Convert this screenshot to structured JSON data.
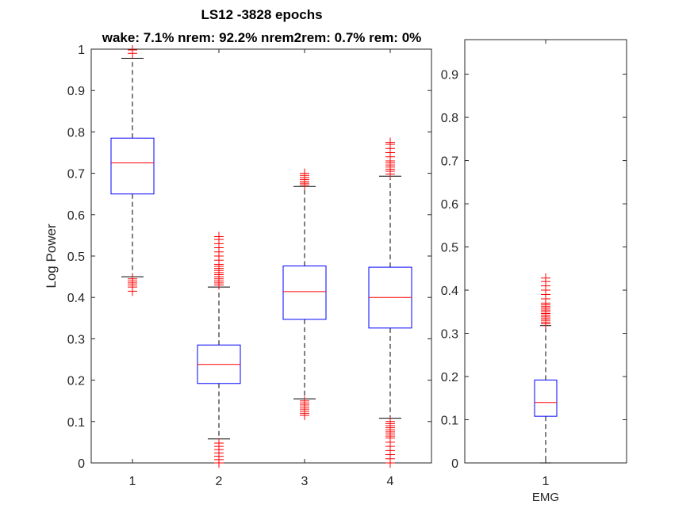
{
  "title_line1": "LS12 -3828 epochs",
  "title_line2": "wake: 7.1% nrem: 92.2% nrem2rem: 0.7% rem: 0%",
  "colors": {
    "box": "#0000ff",
    "median": "#ff0000",
    "whisker": "#000000",
    "outlier": "#ff0000",
    "axes": "#262626"
  },
  "chart_data": [
    {
      "type": "box",
      "ylabel": "Log Power",
      "xlabel": "",
      "ylim": [
        0,
        1
      ],
      "yticks": [
        "0",
        "0.1",
        "0.2",
        "0.3",
        "0.4",
        "0.5",
        "0.6",
        "0.7",
        "0.8",
        "0.9",
        "1"
      ],
      "grid": false,
      "categories": [
        "1",
        "2",
        "3",
        "4"
      ],
      "boxes": [
        {
          "category": "1",
          "whisker_low": 0.45,
          "q1": 0.65,
          "median": 0.725,
          "q3": 0.785,
          "whisker_high": 0.978,
          "outliers": [
            0.415,
            0.425,
            0.43,
            0.435,
            0.44,
            0.445,
            0.99,
            0.998
          ]
        },
        {
          "category": "2",
          "whisker_low": 0.058,
          "q1": 0.192,
          "median": 0.238,
          "q3": 0.285,
          "whisker_high": 0.425,
          "outliers": [
            0.0,
            0.008,
            0.016,
            0.024,
            0.032,
            0.04,
            0.048,
            0.43,
            0.435,
            0.44,
            0.445,
            0.45,
            0.455,
            0.46,
            0.465,
            0.47,
            0.475,
            0.48,
            0.49,
            0.5,
            0.51,
            0.52,
            0.53,
            0.54,
            0.547
          ]
        },
        {
          "category": "3",
          "whisker_low": 0.155,
          "q1": 0.347,
          "median": 0.414,
          "q3": 0.476,
          "whisker_high": 0.668,
          "outliers": [
            0.115,
            0.12,
            0.125,
            0.13,
            0.135,
            0.14,
            0.145,
            0.15,
            0.672,
            0.676,
            0.68,
            0.685,
            0.69,
            0.695,
            0.7
          ]
        },
        {
          "category": "4",
          "whisker_low": 0.108,
          "q1": 0.326,
          "median": 0.4,
          "q3": 0.473,
          "whisker_high": 0.693,
          "outliers": [
            0.0,
            0.01,
            0.02,
            0.03,
            0.04,
            0.05,
            0.06,
            0.065,
            0.07,
            0.075,
            0.08,
            0.085,
            0.09,
            0.095,
            0.1,
            0.698,
            0.705,
            0.71,
            0.715,
            0.72,
            0.725,
            0.73,
            0.74,
            0.75,
            0.76,
            0.77,
            0.775
          ]
        }
      ]
    },
    {
      "type": "box",
      "ylabel": "",
      "xlabel": "EMG",
      "ylim": [
        0,
        0.98
      ],
      "yticks": [
        "0",
        "0.1",
        "0.2",
        "0.3",
        "0.4",
        "0.5",
        "0.6",
        "0.7",
        "0.8",
        "0.9"
      ],
      "grid": false,
      "categories": [
        "1"
      ],
      "boxes": [
        {
          "category": "1",
          "whisker_low": 0.0,
          "q1": 0.108,
          "median": 0.14,
          "q3": 0.192,
          "whisker_high": 0.318,
          "outliers": [
            0.322,
            0.326,
            0.33,
            0.334,
            0.338,
            0.342,
            0.346,
            0.35,
            0.354,
            0.358,
            0.362,
            0.366,
            0.37,
            0.38,
            0.39,
            0.4,
            0.41,
            0.42,
            0.428
          ]
        }
      ]
    }
  ]
}
